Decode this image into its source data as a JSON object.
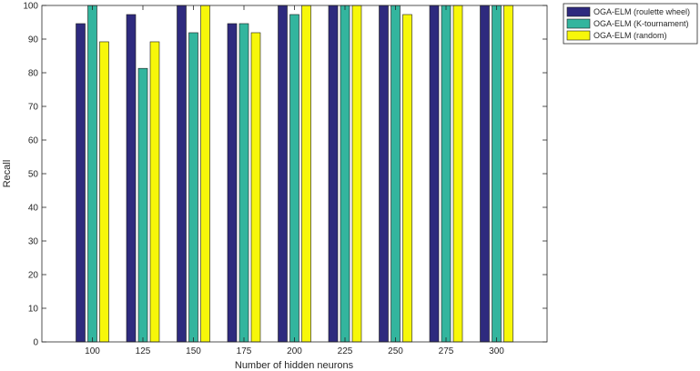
{
  "chart_data": {
    "type": "bar",
    "title": "",
    "xlabel": "Number of hidden neurons",
    "ylabel": "Recall",
    "categories": [
      "100",
      "125",
      "150",
      "175",
      "200",
      "225",
      "250",
      "275",
      "300"
    ],
    "ylim": [
      0,
      100
    ],
    "yticks": [
      0,
      10,
      20,
      30,
      40,
      50,
      60,
      70,
      80,
      90,
      100
    ],
    "grid": false,
    "legend_position": "outside-top-right",
    "series": [
      {
        "name": "OGA-ELM (roulette wheel)",
        "color": "#2e2a7e",
        "values": [
          94.6,
          97.3,
          100,
          94.6,
          100,
          100,
          100,
          100,
          100
        ]
      },
      {
        "name": "OGA-ELM (K-tournament)",
        "color": "#33b59e",
        "values": [
          100,
          81.3,
          91.9,
          94.6,
          97.3,
          100,
          100,
          100,
          100
        ]
      },
      {
        "name": "OGA-ELM (random)",
        "color": "#f7f70a",
        "values": [
          89.2,
          89.2,
          100,
          91.9,
          100,
          100,
          97.3,
          100,
          100
        ]
      }
    ]
  }
}
